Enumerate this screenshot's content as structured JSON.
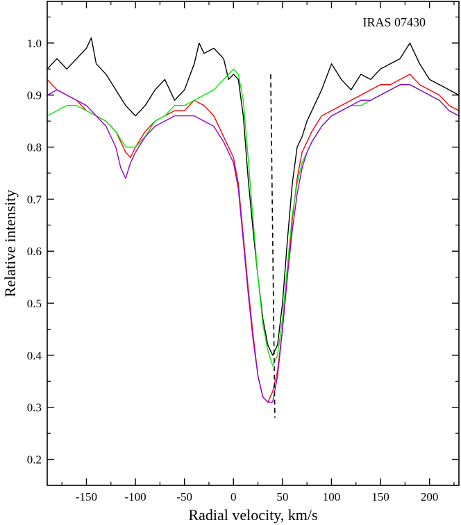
{
  "chart_data": {
    "type": "line",
    "title": "",
    "annotation": "IRAS 07430",
    "xlabel": "Radial velocity, km/s",
    "ylabel": "Relative intensity",
    "xlim": [
      -190,
      230
    ],
    "ylim": [
      0.15,
      1.08
    ],
    "xticks": [
      -150,
      -100,
      -50,
      0,
      50,
      100,
      150,
      200
    ],
    "yticks": [
      0.2,
      0.3,
      0.4,
      0.5,
      0.6,
      0.7,
      0.8,
      0.9,
      1.0
    ],
    "xtick_labels": [
      "-150",
      "-100",
      "-50",
      "0",
      "50",
      "100",
      "150",
      "200"
    ],
    "ytick_labels": [
      "0.2",
      "0.3",
      "0.4",
      "0.5",
      "0.6",
      "0.7",
      "0.8",
      "0.9",
      "1.0"
    ],
    "grid": false,
    "reference_line": {
      "x": 38,
      "y_range": [
        0.28,
        0.94
      ],
      "style": "dashed",
      "color": "#000000"
    },
    "series": [
      {
        "color": "#000000",
        "x": [
          -190,
          -180,
          -170,
          -160,
          -150,
          -145,
          -140,
          -130,
          -120,
          -110,
          -100,
          -90,
          -80,
          -70,
          -60,
          -50,
          -40,
          -35,
          -30,
          -20,
          -10,
          -5,
          0,
          5,
          10,
          15,
          20,
          25,
          30,
          35,
          40,
          45,
          50,
          55,
          60,
          65,
          70,
          75,
          80,
          90,
          100,
          110,
          120,
          130,
          140,
          150,
          160,
          170,
          180,
          190,
          200,
          210,
          220,
          230
        ],
        "y": [
          0.95,
          0.97,
          0.95,
          0.97,
          0.99,
          1.01,
          0.96,
          0.94,
          0.91,
          0.88,
          0.86,
          0.88,
          0.91,
          0.93,
          0.89,
          0.91,
          0.96,
          1.0,
          0.98,
          0.99,
          0.97,
          0.93,
          0.94,
          0.93,
          0.86,
          0.74,
          0.64,
          0.55,
          0.47,
          0.42,
          0.4,
          0.42,
          0.5,
          0.62,
          0.73,
          0.8,
          0.82,
          0.85,
          0.87,
          0.91,
          0.96,
          0.93,
          0.91,
          0.94,
          0.93,
          0.95,
          0.96,
          0.97,
          1.0,
          0.96,
          0.93,
          0.92,
          0.91,
          0.9
        ]
      },
      {
        "color": "#ff0000",
        "x": [
          -190,
          -180,
          -170,
          -160,
          -150,
          -140,
          -130,
          -120,
          -110,
          -105,
          -100,
          -90,
          -80,
          -70,
          -60,
          -50,
          -40,
          -30,
          -20,
          -10,
          0,
          5,
          10,
          15,
          20,
          25,
          30,
          35,
          40,
          45,
          50,
          55,
          60,
          65,
          70,
          75,
          80,
          90,
          100,
          110,
          120,
          130,
          140,
          150,
          160,
          170,
          180,
          190,
          200,
          210,
          220,
          230
        ],
        "y": [
          0.93,
          0.91,
          0.9,
          0.89,
          0.87,
          0.86,
          0.85,
          0.83,
          0.79,
          0.78,
          0.8,
          0.83,
          0.85,
          0.86,
          0.87,
          0.87,
          0.89,
          0.88,
          0.86,
          0.82,
          0.78,
          0.73,
          0.63,
          0.53,
          0.44,
          0.36,
          0.32,
          0.31,
          0.33,
          0.37,
          0.45,
          0.55,
          0.66,
          0.74,
          0.79,
          0.81,
          0.83,
          0.86,
          0.87,
          0.88,
          0.89,
          0.9,
          0.91,
          0.92,
          0.92,
          0.93,
          0.94,
          0.92,
          0.91,
          0.9,
          0.88,
          0.87
        ]
      },
      {
        "color": "#00ee00",
        "x": [
          -190,
          -180,
          -170,
          -160,
          -150,
          -140,
          -130,
          -120,
          -110,
          -100,
          -90,
          -80,
          -70,
          -60,
          -50,
          -40,
          -30,
          -20,
          -10,
          -5,
          0,
          5,
          10,
          15,
          20,
          25,
          30,
          35,
          40,
          45,
          50,
          55,
          60,
          65,
          70,
          75,
          80,
          90,
          100,
          110,
          120,
          130,
          140,
          150,
          160,
          170,
          180,
          190,
          200,
          210,
          220,
          230
        ],
        "y": [
          0.86,
          0.87,
          0.88,
          0.88,
          0.87,
          0.86,
          0.85,
          0.83,
          0.8,
          0.8,
          0.82,
          0.85,
          0.86,
          0.88,
          0.88,
          0.89,
          0.9,
          0.91,
          0.93,
          0.94,
          0.95,
          0.94,
          0.89,
          0.78,
          0.66,
          0.55,
          0.46,
          0.41,
          0.38,
          0.4,
          0.47,
          0.57,
          0.67,
          0.73,
          0.77,
          0.79,
          0.81,
          0.84,
          0.86,
          0.87,
          0.88,
          0.88,
          0.89,
          0.9,
          0.91,
          0.92,
          0.92,
          0.91,
          0.9,
          0.89,
          0.87,
          0.86
        ]
      },
      {
        "color": "#9400d3",
        "x": [
          -190,
          -180,
          -170,
          -160,
          -150,
          -140,
          -130,
          -120,
          -115,
          -110,
          -105,
          -100,
          -90,
          -80,
          -70,
          -60,
          -50,
          -40,
          -30,
          -20,
          -10,
          0,
          5,
          10,
          15,
          20,
          25,
          30,
          35,
          40,
          45,
          50,
          55,
          60,
          65,
          70,
          75,
          80,
          90,
          100,
          110,
          120,
          130,
          140,
          150,
          160,
          170,
          180,
          190,
          200,
          210,
          220,
          230
        ],
        "y": [
          0.9,
          0.91,
          0.9,
          0.89,
          0.88,
          0.86,
          0.84,
          0.8,
          0.76,
          0.74,
          0.77,
          0.79,
          0.82,
          0.84,
          0.85,
          0.86,
          0.86,
          0.86,
          0.85,
          0.84,
          0.81,
          0.77,
          0.72,
          0.62,
          0.52,
          0.43,
          0.36,
          0.32,
          0.31,
          0.31,
          0.36,
          0.45,
          0.55,
          0.64,
          0.71,
          0.76,
          0.79,
          0.81,
          0.84,
          0.86,
          0.87,
          0.88,
          0.89,
          0.89,
          0.9,
          0.91,
          0.92,
          0.92,
          0.91,
          0.9,
          0.89,
          0.87,
          0.86
        ]
      }
    ]
  }
}
